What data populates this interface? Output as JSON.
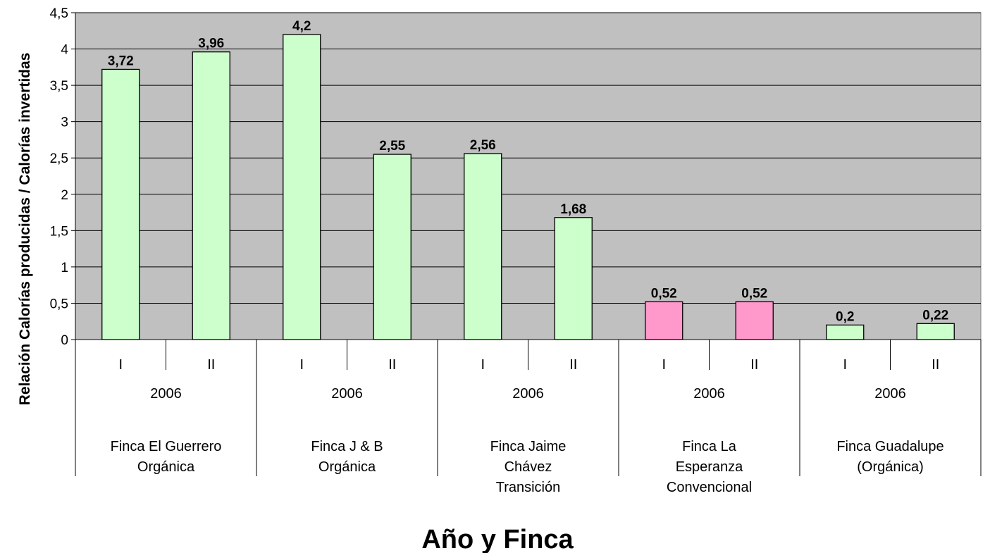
{
  "chart_data": {
    "type": "bar",
    "xlabel": "Año y Finca",
    "ylabel": "Relación Calorías producidas / Calorías invertidas",
    "ylim": [
      0,
      4.5
    ],
    "y_ticks": [
      "0",
      "0,5",
      "1",
      "1,5",
      "2",
      "2,5",
      "3",
      "3,5",
      "4",
      "4,5"
    ],
    "grid": true,
    "plot_background": "#c0c0c0",
    "groups": [
      {
        "farm": [
          "Finca El Guerrero",
          "Orgánica"
        ],
        "year": "2006",
        "bars": [
          {
            "period": "I",
            "value": 3.72,
            "label": "3,72",
            "color": "#ccffcc"
          },
          {
            "period": "II",
            "value": 3.96,
            "label": "3,96",
            "color": "#ccffcc"
          }
        ]
      },
      {
        "farm": [
          "Finca J & B",
          "Orgánica"
        ],
        "year": "2006",
        "bars": [
          {
            "period": "I",
            "value": 4.2,
            "label": "4,2",
            "color": "#ccffcc"
          },
          {
            "period": "II",
            "value": 2.55,
            "label": "2,55",
            "color": "#ccffcc"
          }
        ]
      },
      {
        "farm": [
          "Finca Jaime",
          "Chávez",
          "Transición"
        ],
        "year": "2006",
        "bars": [
          {
            "period": "I",
            "value": 2.56,
            "label": "2,56",
            "color": "#ccffcc"
          },
          {
            "period": "II",
            "value": 1.68,
            "label": "1,68",
            "color": "#ccffcc"
          }
        ]
      },
      {
        "farm": [
          "Finca La",
          "Esperanza",
          "Convencional"
        ],
        "year": "2006",
        "bars": [
          {
            "period": "I",
            "value": 0.52,
            "label": "0,52",
            "color": "#ff99cc"
          },
          {
            "period": "II",
            "value": 0.52,
            "label": "0,52",
            "color": "#ff99cc"
          }
        ]
      },
      {
        "farm": [
          "Finca Guadalupe",
          "(Orgánica)"
        ],
        "year": "2006",
        "bars": [
          {
            "period": "I",
            "value": 0.2,
            "label": "0,2",
            "color": "#ccffcc"
          },
          {
            "period": "II",
            "value": 0.22,
            "label": "0,22",
            "color": "#ccffcc"
          }
        ]
      }
    ]
  }
}
